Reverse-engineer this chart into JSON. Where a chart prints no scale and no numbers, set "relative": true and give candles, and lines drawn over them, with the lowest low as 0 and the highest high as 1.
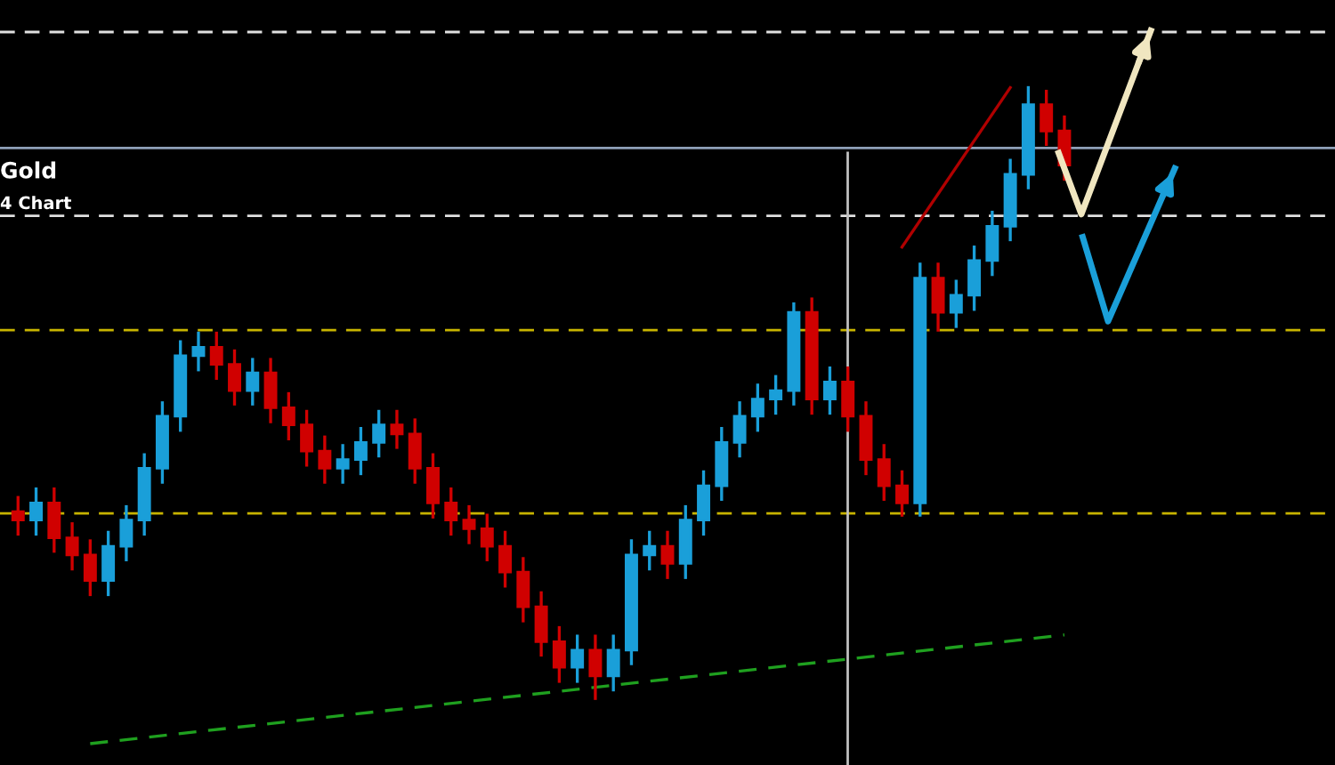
{
  "chart_data": {
    "type": "candlestick",
    "relative": true,
    "legend": false,
    "annotations": [
      "Gold",
      "4 Chart"
    ],
    "categories": [
      null,
      null,
      null,
      null,
      null,
      null,
      null,
      null,
      null,
      null,
      null,
      null,
      null,
      null,
      null,
      null,
      null,
      null,
      null,
      null,
      null,
      null,
      null,
      null,
      null,
      null,
      null,
      null,
      null,
      null,
      null,
      null,
      null,
      null,
      null,
      null,
      null,
      null,
      null,
      null,
      null,
      null,
      null,
      null,
      null,
      null,
      null,
      null,
      null,
      null,
      null,
      null,
      null,
      null,
      null,
      null,
      null,
      null,
      null
    ],
    "ohlc": [
      [
        0.306,
        0.329,
        0.269,
        0.292
      ],
      [
        0.292,
        0.343,
        0.269,
        0.32
      ],
      [
        0.32,
        0.343,
        0.241,
        0.263
      ],
      [
        0.263,
        0.286,
        0.212,
        0.235
      ],
      [
        0.235,
        0.258,
        0.17,
        0.193
      ],
      [
        0.193,
        0.272,
        0.17,
        0.249
      ],
      [
        0.249,
        0.314,
        0.227,
        0.292
      ],
      [
        0.292,
        0.399,
        0.269,
        0.377
      ],
      [
        0.377,
        0.484,
        0.354,
        0.462
      ],
      [
        0.462,
        0.584,
        0.439,
        0.561
      ],
      [
        0.561,
        0.598,
        0.538,
        0.575
      ],
      [
        0.575,
        0.598,
        0.524,
        0.547
      ],
      [
        0.547,
        0.569,
        0.482,
        0.504
      ],
      [
        0.504,
        0.555,
        0.482,
        0.533
      ],
      [
        0.533,
        0.555,
        0.453,
        0.476
      ],
      [
        0.476,
        0.499,
        0.425,
        0.448
      ],
      [
        0.448,
        0.47,
        0.382,
        0.405
      ],
      [
        0.405,
        0.428,
        0.354,
        0.377
      ],
      [
        0.377,
        0.414,
        0.354,
        0.391
      ],
      [
        0.391,
        0.442,
        0.368,
        0.419
      ],
      [
        0.419,
        0.47,
        0.397,
        0.448
      ],
      [
        0.448,
        0.47,
        0.411,
        0.433
      ],
      [
        0.433,
        0.456,
        0.354,
        0.377
      ],
      [
        0.377,
        0.399,
        0.297,
        0.32
      ],
      [
        0.32,
        0.343,
        0.269,
        0.292
      ],
      [
        0.292,
        0.314,
        0.255,
        0.278
      ],
      [
        0.278,
        0.3,
        0.227,
        0.249
      ],
      [
        0.249,
        0.272,
        0.184,
        0.207
      ],
      [
        0.207,
        0.229,
        0.127,
        0.15
      ],
      [
        0.15,
        0.173,
        0.071,
        0.093
      ],
      [
        0.093,
        0.116,
        0.028,
        0.051
      ],
      [
        0.051,
        0.102,
        0.028,
        0.079
      ],
      [
        0.079,
        0.102,
        0.0,
        0.037
      ],
      [
        0.037,
        0.102,
        0.014,
        0.079
      ],
      [
        0.079,
        0.258,
        0.057,
        0.235
      ],
      [
        0.235,
        0.272,
        0.212,
        0.249
      ],
      [
        0.249,
        0.272,
        0.198,
        0.221
      ],
      [
        0.221,
        0.314,
        0.198,
        0.292
      ],
      [
        0.292,
        0.371,
        0.269,
        0.348
      ],
      [
        0.348,
        0.442,
        0.326,
        0.419
      ],
      [
        0.419,
        0.484,
        0.397,
        0.462
      ],
      [
        0.462,
        0.513,
        0.439,
        0.49
      ],
      [
        0.49,
        0.527,
        0.467,
        0.504
      ],
      [
        0.504,
        0.646,
        0.482,
        0.632
      ],
      [
        0.632,
        0.654,
        0.467,
        0.49
      ],
      [
        0.49,
        0.541,
        0.467,
        0.518
      ],
      [
        0.518,
        0.541,
        0.439,
        0.462
      ],
      [
        0.462,
        0.484,
        0.368,
        0.391
      ],
      [
        0.391,
        0.414,
        0.326,
        0.348
      ],
      [
        0.348,
        0.371,
        0.3,
        0.32
      ],
      [
        0.32,
        0.711,
        0.3,
        0.688
      ],
      [
        0.688,
        0.711,
        0.603,
        0.632
      ],
      [
        0.632,
        0.683,
        0.609,
        0.66
      ],
      [
        0.66,
        0.739,
        0.637,
        0.717
      ],
      [
        0.717,
        0.796,
        0.694,
        0.773
      ],
      [
        0.773,
        0.881,
        0.751,
        0.858
      ],
      [
        0.858,
        1.0,
        0.836,
        0.972
      ],
      [
        0.972,
        0.994,
        0.907,
        0.929
      ],
      [
        0.929,
        0.952,
        0.85,
        0.873
      ]
    ],
    "colors": [
      "#d00000",
      "#1a9fd9",
      "#d00000",
      "#d00000",
      "#d00000",
      "#1a9fd9",
      "#1a9fd9",
      "#1a9fd9",
      "#1a9fd9",
      "#1a9fd9",
      "#1a9fd9",
      "#d00000",
      "#d00000",
      "#1a9fd9",
      "#d00000",
      "#d00000",
      "#d00000",
      "#d00000",
      "#1a9fd9",
      "#1a9fd9",
      "#1a9fd9",
      "#d00000",
      "#d00000",
      "#d00000",
      "#d00000",
      "#d00000",
      "#d00000",
      "#d00000",
      "#d00000",
      "#d00000",
      "#d00000",
      "#1a9fd9",
      "#d00000",
      "#1a9fd9",
      "#1a9fd9",
      "#1a9fd9",
      "#d00000",
      "#1a9fd9",
      "#1a9fd9",
      "#1a9fd9",
      "#1a9fd9",
      "#1a9fd9",
      "#1a9fd9",
      "#1a9fd9",
      "#d00000",
      "#1a9fd9",
      "#d00000",
      "#d00000",
      "#d00000",
      "#d00000",
      "#1a9fd9",
      "#d00000",
      "#1a9fd9",
      "#1a9fd9",
      "#1a9fd9",
      "#1a9fd9",
      "#1a9fd9",
      "#d00000",
      "#d00000"
    ],
    "series": [
      {
        "type": "line",
        "color": "#1fa01f",
        "line_style": "dashed",
        "values": [
          null,
          null,
          null,
          null,
          -0.074,
          null,
          null,
          null,
          null,
          null,
          null,
          null,
          null,
          null,
          null,
          null,
          null,
          null,
          null,
          null,
          null,
          null,
          null,
          null,
          null,
          null,
          null,
          null,
          null,
          null,
          null,
          null,
          null,
          null,
          null,
          null,
          null,
          null,
          null,
          null,
          null,
          null,
          null,
          null,
          null,
          null,
          null,
          null,
          null,
          null,
          null,
          null,
          null,
          null,
          null,
          null,
          null,
          null,
          0.104
        ]
      },
      {
        "type": "line",
        "color": "#b00000",
        "line_style": "solid",
        "values": [
          null,
          null,
          null,
          null,
          null,
          null,
          null,
          null,
          null,
          null,
          null,
          null,
          null,
          null,
          null,
          null,
          null,
          null,
          null,
          null,
          null,
          null,
          null,
          null,
          null,
          null,
          null,
          null,
          null,
          null,
          null,
          null,
          null,
          null,
          null,
          null,
          null,
          null,
          null,
          null,
          null,
          null,
          null,
          null,
          null,
          null,
          null,
          null,
          null,
          0.739,
          null,
          null,
          null,
          null,
          null,
          1.0,
          null,
          null,
          null
        ]
      }
    ],
    "ref_lines": [
      {
        "axis": "y",
        "value": 0.303,
        "color": "#c8b400",
        "line_style": "dashed"
      },
      {
        "axis": "y",
        "value": 0.603,
        "color": "#c8b400",
        "line_style": "dashed"
      },
      {
        "axis": "y",
        "value": 0.79,
        "color": "#e0e0e0",
        "line_style": "dashed"
      },
      {
        "axis": "y",
        "value": 0.901,
        "color": "#8fa0b8",
        "line_style": "solid"
      },
      {
        "axis": "y",
        "value": 1.091,
        "color": "#e0e0e0",
        "line_style": "dashed"
      }
    ]
  }
}
